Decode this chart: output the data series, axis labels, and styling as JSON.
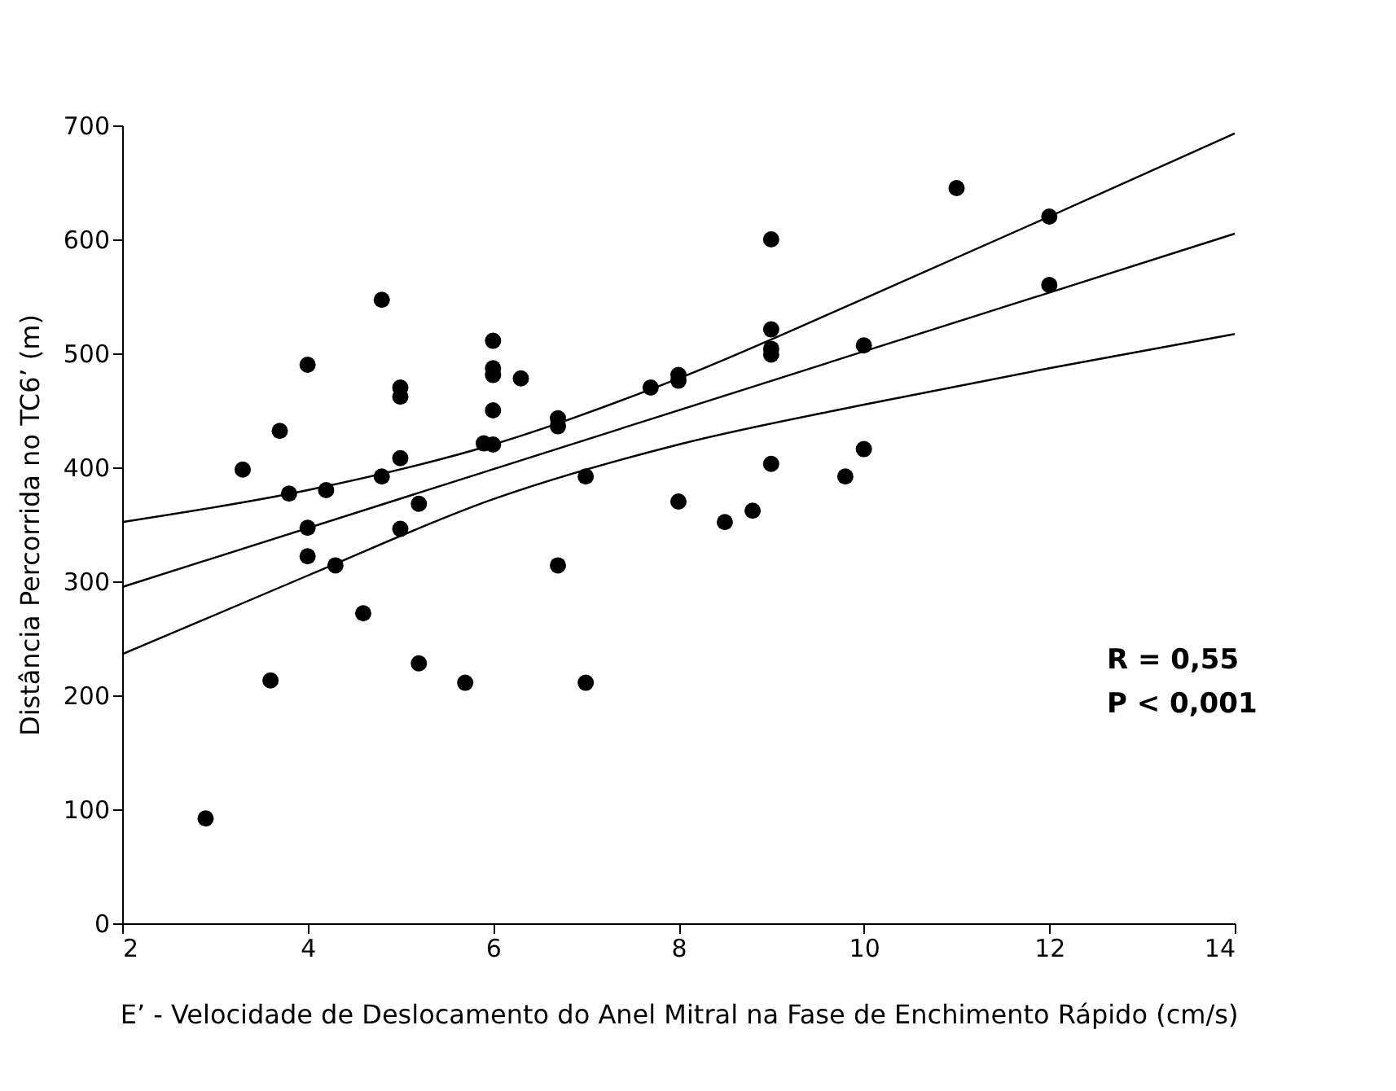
{
  "chart_data": {
    "type": "scatter",
    "xlabel": "E’ - Velocidade de Deslocamento do Anel Mitral na Fase de Enchimento Rápido (cm/s)",
    "ylabel": "Distância Percorrida no TC6’ (m)",
    "xlim": [
      2,
      14
    ],
    "xticks": [
      2,
      4,
      6,
      8,
      10,
      12,
      14
    ],
    "ylim": [
      0,
      700
    ],
    "yticks": [
      0,
      100,
      200,
      300,
      400,
      500,
      600,
      700
    ],
    "grid": false,
    "annotations": [
      "R = 0,55",
      "P < 0,001"
    ],
    "series": [
      {
        "marker": "circle",
        "color": "#000000",
        "x": [
          2.9,
          3.3,
          3.6,
          3.7,
          3.8,
          4.0,
          4.0,
          4.0,
          4.2,
          4.3,
          4.6,
          4.8,
          4.8,
          5.0,
          5.0,
          5.0,
          5.0,
          5.2,
          5.2,
          5.7,
          5.9,
          6.0,
          6.0,
          6.0,
          6.0,
          6.0,
          6.3,
          6.7,
          6.7,
          6.7,
          7.0,
          7.0,
          7.7,
          8.0,
          8.0,
          8.0,
          8.5,
          8.8,
          9.0,
          9.0,
          9.0,
          9.0,
          9.0,
          9.8,
          10.0,
          10.0,
          11.0,
          12.0,
          12.0
        ],
        "values": [
          92,
          398,
          213,
          432,
          377,
          490,
          347,
          322,
          380,
          314,
          272,
          547,
          392,
          470,
          462,
          408,
          346,
          368,
          228,
          211,
          421,
          511,
          487,
          481,
          450,
          420,
          478,
          443,
          436,
          314,
          392,
          211,
          470,
          481,
          476,
          370,
          352,
          362,
          600,
          521,
          504,
          499,
          403,
          392,
          507,
          416,
          645,
          620,
          560
        ]
      },
      {
        "type": "line",
        "line_style": "solid",
        "color": "#000000",
        "x": [
          2,
          14
        ],
        "values": [
          295,
          605
        ]
      },
      {
        "type": "line",
        "line_style": "solid",
        "color": "#000000",
        "x": [
          2,
          4,
          6,
          8,
          10,
          12,
          14
        ],
        "values": [
          352,
          380,
          420,
          478,
          548,
          620,
          693
        ]
      },
      {
        "type": "line",
        "line_style": "solid",
        "color": "#000000",
        "x": [
          2,
          4,
          6,
          8,
          10,
          12,
          14
        ],
        "values": [
          236,
          305,
          372,
          420,
          455,
          487,
          517
        ]
      }
    ]
  }
}
